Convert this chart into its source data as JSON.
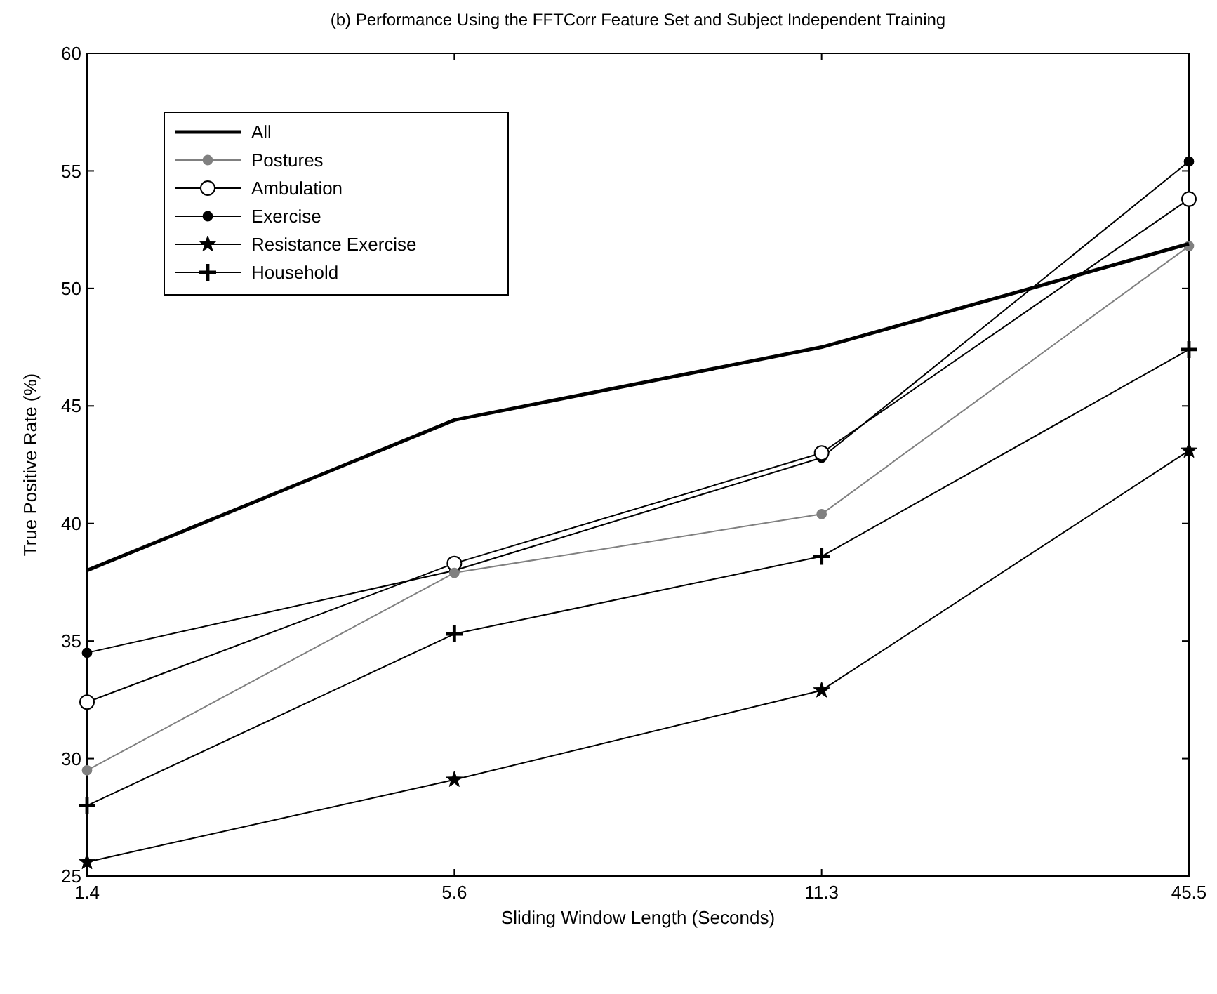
{
  "chart_data": {
    "type": "line",
    "title": "(b) Performance Using the FFTCorr Feature Set and Subject Independent Training",
    "xlabel": "Sliding Window Length (Seconds)",
    "ylabel": "True Positive Rate (%)",
    "categories": [
      "1.4",
      "5.6",
      "11.3",
      "45.5"
    ],
    "ylim": [
      25,
      60
    ],
    "yticks": [
      25,
      30,
      35,
      40,
      45,
      50,
      55,
      60
    ],
    "grid": false,
    "legend": "top left",
    "series": [
      {
        "name": "All",
        "color": "#000000",
        "marker": "none",
        "values": [
          38.0,
          44.4,
          47.5,
          51.9
        ]
      },
      {
        "name": "Postures",
        "color": "#808080",
        "marker": "dot",
        "values": [
          29.5,
          37.9,
          40.4,
          51.8
        ]
      },
      {
        "name": "Ambulation",
        "color": "#000000",
        "marker": "circle",
        "values": [
          32.4,
          38.3,
          43.0,
          53.8
        ]
      },
      {
        "name": "Exercise",
        "color": "#000000",
        "marker": "dot",
        "values": [
          34.5,
          38.0,
          42.8,
          55.4
        ]
      },
      {
        "name": "Resistance Exercise",
        "color": "#000000",
        "marker": "star",
        "values": [
          25.6,
          29.1,
          32.9,
          43.1
        ]
      },
      {
        "name": "Household",
        "color": "#000000",
        "marker": "cross",
        "values": [
          28.0,
          35.3,
          38.6,
          47.4
        ]
      }
    ]
  }
}
